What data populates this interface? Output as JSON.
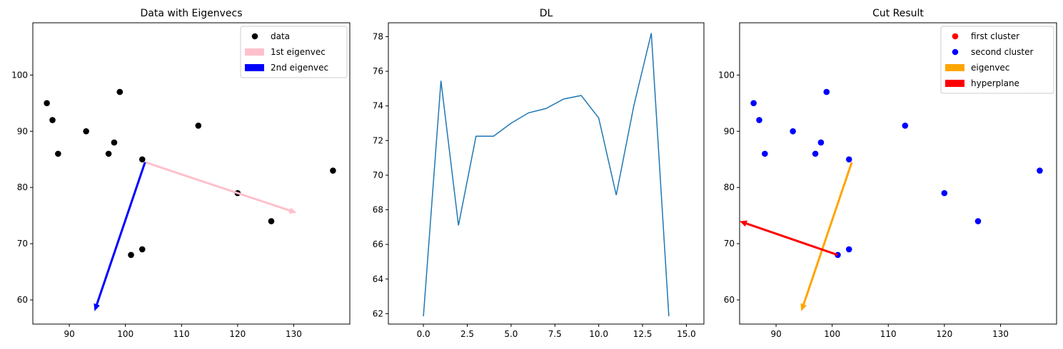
{
  "chart_data": [
    {
      "type": "scatter",
      "title": "Data with Eigenvecs",
      "xlim": [
        83.5,
        140.0
      ],
      "ylim": [
        55.7,
        109.3
      ],
      "xticks": [
        90,
        100,
        110,
        120,
        130
      ],
      "yticks": [
        60,
        70,
        80,
        90,
        100
      ],
      "legend_position": "upper right",
      "series": [
        {
          "name": "data",
          "kind": "points",
          "color": "#000000",
          "points": [
            [
              86,
              95
            ],
            [
              87,
              92
            ],
            [
              88,
              86
            ],
            [
              93,
              90
            ],
            [
              97,
              86
            ],
            [
              98,
              88
            ],
            [
              99,
              97
            ],
            [
              103,
              85
            ],
            [
              101,
              68
            ],
            [
              103,
              69
            ],
            [
              113,
              91
            ],
            [
              120,
              79
            ],
            [
              126,
              74
            ],
            [
              137,
              83
            ]
          ]
        },
        {
          "name": "1st eigenvec",
          "kind": "arrow",
          "color": "#ffc0cb",
          "from": [
            103.5,
            84.5
          ],
          "to": [
            130.5,
            75.5
          ]
        },
        {
          "name": "2nd eigenvec",
          "kind": "arrow",
          "color": "#0000ff",
          "from": [
            103.5,
            84.5
          ],
          "to": [
            94.5,
            58.0
          ]
        }
      ]
    },
    {
      "type": "line",
      "title": "DL",
      "xlim": [
        -2.0,
        16.0
      ],
      "ylim": [
        61.4,
        78.8
      ],
      "xticks": [
        0.0,
        2.5,
        5.0,
        7.5,
        10.0,
        12.5,
        15.0
      ],
      "yticks": [
        62,
        64,
        66,
        68,
        70,
        72,
        74,
        76,
        78
      ],
      "series": [
        {
          "name": "",
          "color": "#1f77b4",
          "x": [
            0,
            1,
            2,
            3,
            4,
            5,
            6,
            7,
            8,
            9,
            10,
            11,
            12,
            13,
            14
          ],
          "y": [
            61.85,
            75.45,
            67.1,
            72.25,
            72.25,
            73.0,
            73.6,
            73.85,
            74.4,
            74.6,
            73.3,
            68.85,
            74.0,
            78.2,
            61.85
          ]
        }
      ]
    },
    {
      "type": "scatter",
      "title": "Cut Result",
      "xlim": [
        83.5,
        140.0
      ],
      "ylim": [
        55.7,
        109.3
      ],
      "xticks": [
        90,
        100,
        110,
        120,
        130
      ],
      "yticks": [
        60,
        70,
        80,
        90,
        100
      ],
      "legend_position": "upper right",
      "series": [
        {
          "name": "first cluster",
          "kind": "points",
          "color": "#ff0000",
          "points": []
        },
        {
          "name": "second cluster",
          "kind": "points",
          "color": "#0000ff",
          "points": [
            [
              86,
              95
            ],
            [
              87,
              92
            ],
            [
              88,
              86
            ],
            [
              93,
              90
            ],
            [
              97,
              86
            ],
            [
              98,
              88
            ],
            [
              99,
              97
            ],
            [
              103,
              85
            ],
            [
              101,
              68
            ],
            [
              103,
              69
            ],
            [
              113,
              91
            ],
            [
              120,
              79
            ],
            [
              126,
              74
            ],
            [
              137,
              83
            ]
          ]
        },
        {
          "name": "eigenvec",
          "kind": "arrow",
          "color": "#ffa500",
          "from": [
            103.5,
            84.5
          ],
          "to": [
            94.5,
            58.0
          ]
        },
        {
          "name": "hyperplane",
          "kind": "arrow",
          "color": "#ff0000",
          "from": [
            101.0,
            68.0
          ],
          "to": [
            83.5,
            74.0
          ]
        }
      ]
    }
  ]
}
